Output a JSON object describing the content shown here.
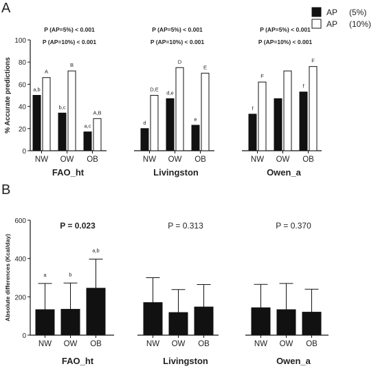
{
  "colors": {
    "black_bar": "#111111",
    "white_bar": "#ffffff",
    "stroke": "#111111"
  },
  "chart_data": [
    {
      "type": "bar",
      "panel_label": "A",
      "ylabel": "% Accurate predictions",
      "ylim": [
        0,
        100
      ],
      "yticks": [
        "0",
        "20",
        "40",
        "60",
        "80",
        "100"
      ],
      "legend_position": "top-right",
      "legend": [
        {
          "name": "AP",
          "suffix": "(5%)",
          "fill": "#111111"
        },
        {
          "name": "AP",
          "suffix": "(10%)",
          "fill": "#ffffff"
        }
      ],
      "groups": [
        {
          "name": "FAO_ht",
          "annotations": [
            "P (AP=5%) < 0.001",
            "P (AP=10%) < 0.001"
          ],
          "categories": [
            "NW",
            "OW",
            "OB"
          ],
          "series": [
            {
              "name": "AP (5%)",
              "values": [
                50,
                34,
                17
              ],
              "letters": [
                "a,b",
                "b,c",
                "a,c"
              ]
            },
            {
              "name": "AP (10%)",
              "values": [
                66,
                72,
                29
              ],
              "letters": [
                "A",
                "B",
                "A,B"
              ]
            }
          ]
        },
        {
          "name": "Livingston",
          "annotations": [
            "P (AP=5%) < 0.001",
            "P (AP=10%) < 0.001"
          ],
          "categories": [
            "NW",
            "OW",
            "OB"
          ],
          "series": [
            {
              "name": "AP (5%)",
              "values": [
                20,
                47,
                23
              ],
              "letters": [
                "d",
                "d,e",
                "e"
              ]
            },
            {
              "name": "AP (10%)",
              "values": [
                50,
                75,
                70
              ],
              "letters": [
                "D,E",
                "D",
                "E"
              ]
            }
          ]
        },
        {
          "name": "Owen_a",
          "annotations": [
            "P (AP=5%) < 0.001",
            "P (AP=10%) < 0.001"
          ],
          "categories": [
            "NW",
            "OW",
            "OB"
          ],
          "series": [
            {
              "name": "AP (5%)",
              "values": [
                33,
                47,
                53
              ],
              "letters": [
                "f",
                "",
                "f"
              ]
            },
            {
              "name": "AP (10%)",
              "values": [
                62,
                72,
                76
              ],
              "letters": [
                "F",
                "",
                "F"
              ]
            }
          ]
        }
      ]
    },
    {
      "type": "bar",
      "panel_label": "B",
      "ylabel": "Absolute differences (Kcal/day)",
      "ylim": [
        0,
        600
      ],
      "yticks": [
        "0",
        "200",
        "400",
        "600"
      ],
      "groups": [
        {
          "name": "FAO_ht",
          "pvalue": "P = 0.023",
          "pvalue_bold": true,
          "categories": [
            "NW",
            "OW",
            "OB"
          ],
          "values": [
            133,
            135,
            245
          ],
          "errors": [
            137,
            137,
            152
          ],
          "letters": [
            "a",
            "b",
            "a,b"
          ]
        },
        {
          "name": "Livingston",
          "pvalue": "P = 0.313",
          "pvalue_bold": false,
          "categories": [
            "NW",
            "OW",
            "OB"
          ],
          "values": [
            170,
            118,
            147
          ],
          "errors": [
            130,
            120,
            117
          ],
          "letters": [
            "",
            "",
            ""
          ]
        },
        {
          "name": "Owen_a",
          "pvalue": "P = 0.370",
          "pvalue_bold": false,
          "categories": [
            "NW",
            "OW",
            "OB"
          ],
          "values": [
            143,
            133,
            120
          ],
          "errors": [
            122,
            137,
            120
          ],
          "letters": [
            "",
            "",
            ""
          ]
        }
      ]
    }
  ]
}
